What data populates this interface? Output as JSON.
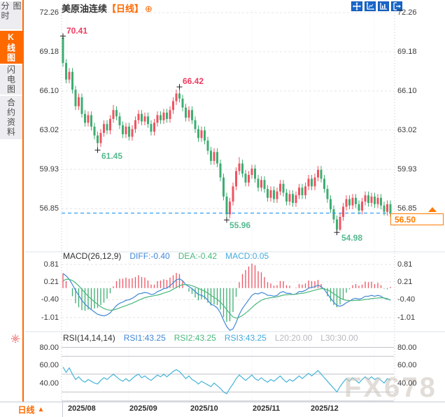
{
  "sidebar": {
    "tabs": [
      {
        "label": "分时图",
        "active": false
      },
      {
        "label": "K线图",
        "active": true
      },
      {
        "label": "闪电图",
        "active": false
      },
      {
        "label": "合约资料",
        "active": false
      }
    ]
  },
  "header": {
    "title": "美原油连续",
    "period_tag": "【日线】",
    "plus_icon": "⊕"
  },
  "toolbar": {
    "icons": [
      "crosshair-move-icon",
      "fit-chart-icon",
      "axis-scale-icon",
      "collapse-panel-icon"
    ]
  },
  "main_chart": {
    "y_labels": [
      "72.26",
      "69.18",
      "66.10",
      "63.02",
      "59.93",
      "56.85"
    ],
    "current_price": "56.50"
  },
  "macd": {
    "params": "MACD(26,12,9)",
    "diff": "DIFF:-0.40",
    "dea": "DEA:-0.42",
    "macd": "MACD:0.05",
    "y_labels": [
      "0.81",
      "0.21",
      "-0.40",
      "-1.01"
    ]
  },
  "rsi": {
    "params": "RSI(14,14,14)",
    "rsi1": "RSI1:43.25",
    "rsi2": "RSI2:43.25",
    "rsi3": "RSI3:43.25",
    "l20": "L20:20.00",
    "l30": "L30:30.00",
    "y_labels": [
      "80.00",
      "60.00",
      "40.00"
    ]
  },
  "x_axis": {
    "dates": [
      "2025/08",
      "2025/09",
      "2025/10",
      "2025/11",
      "2025/12"
    ]
  },
  "bottom_bar": {
    "period": "日线",
    "arrow": "▲"
  },
  "watermark": "FX678",
  "colors": {
    "accent_orange": "#ff6a00",
    "toolbar_blue": "#1a67c9",
    "up": "#ef5361",
    "down": "#3dae71",
    "marker_up_text": "#ef3a60",
    "marker_down_text": "#55b990",
    "current_line_blue": "#2196f3",
    "diff_line": "#4187d6",
    "dea_line": "#49b77c",
    "rsi_line": "#45b4d8",
    "grid": "#e4e4ea",
    "rsi_levels": "#c2c2ca",
    "axis_text": "#3a3a3a"
  },
  "chart_data": {
    "type": "candlestick",
    "title": "美原油连续【日线】",
    "x_months": [
      "2025/08",
      "2025/09",
      "2025/10",
      "2025/11",
      "2025/12"
    ],
    "y_ticks": [
      72.26,
      69.18,
      66.1,
      63.02,
      59.93,
      56.85
    ],
    "current_price": 56.5,
    "candles": [
      [
        70.3,
        70.41,
        68.0,
        68.3
      ],
      [
        68.3,
        68.6,
        66.7,
        67.0
      ],
      [
        67.0,
        67.9,
        66.7,
        67.6
      ],
      [
        67.6,
        67.9,
        65.9,
        66.2
      ],
      [
        66.2,
        66.5,
        64.6,
        64.9
      ],
      [
        64.9,
        65.9,
        64.6,
        65.6
      ],
      [
        65.6,
        65.9,
        64.0,
        64.3
      ],
      [
        64.3,
        64.6,
        63.3,
        63.6
      ],
      [
        63.6,
        64.5,
        63.3,
        64.2
      ],
      [
        64.2,
        64.5,
        63.0,
        63.3
      ],
      [
        63.3,
        63.6,
        62.3,
        62.6
      ],
      [
        62.6,
        62.9,
        61.45,
        62.0
      ],
      [
        62.0,
        63.1,
        61.7,
        62.8
      ],
      [
        62.8,
        63.8,
        62.5,
        63.5
      ],
      [
        63.5,
        63.8,
        62.7,
        63.0
      ],
      [
        63.0,
        64.2,
        62.7,
        63.9
      ],
      [
        63.9,
        65.0,
        63.6,
        64.6
      ],
      [
        64.6,
        64.9,
        63.8,
        64.1
      ],
      [
        64.1,
        64.4,
        63.1,
        63.4
      ],
      [
        63.4,
        63.7,
        62.4,
        62.7
      ],
      [
        62.7,
        63.6,
        62.4,
        63.3
      ],
      [
        63.3,
        63.6,
        62.2,
        62.5
      ],
      [
        62.5,
        63.4,
        62.2,
        63.1
      ],
      [
        63.1,
        64.1,
        62.8,
        63.8
      ],
      [
        63.8,
        64.6,
        63.5,
        64.3
      ],
      [
        64.3,
        64.6,
        63.4,
        63.7
      ],
      [
        63.7,
        64.4,
        63.4,
        64.1
      ],
      [
        64.1,
        64.4,
        63.2,
        63.5
      ],
      [
        63.5,
        63.8,
        62.6,
        62.9
      ],
      [
        62.9,
        63.9,
        62.6,
        63.6
      ],
      [
        63.6,
        64.5,
        63.3,
        64.2
      ],
      [
        64.2,
        64.5,
        63.5,
        63.8
      ],
      [
        63.8,
        64.7,
        63.5,
        64.4
      ],
      [
        64.4,
        64.7,
        63.6,
        63.9
      ],
      [
        63.9,
        64.9,
        63.6,
        64.6
      ],
      [
        64.6,
        65.6,
        64.3,
        65.3
      ],
      [
        65.3,
        66.2,
        65.0,
        65.9
      ],
      [
        65.9,
        66.42,
        65.2,
        65.5
      ],
      [
        65.5,
        65.8,
        64.5,
        64.8
      ],
      [
        64.8,
        65.1,
        63.7,
        64.0
      ],
      [
        64.0,
        64.9,
        63.7,
        64.6
      ],
      [
        64.6,
        64.9,
        63.5,
        63.8
      ],
      [
        63.8,
        64.1,
        62.8,
        63.1
      ],
      [
        63.1,
        63.4,
        62.1,
        62.4
      ],
      [
        62.4,
        63.3,
        62.1,
        63.0
      ],
      [
        63.0,
        63.3,
        61.9,
        62.2
      ],
      [
        62.2,
        62.5,
        61.1,
        61.4
      ],
      [
        61.4,
        61.7,
        60.3,
        60.6
      ],
      [
        60.6,
        61.6,
        60.3,
        61.3
      ],
      [
        61.3,
        61.6,
        60.1,
        60.4
      ],
      [
        60.4,
        60.7,
        59.0,
        59.3
      ],
      [
        59.3,
        59.6,
        57.5,
        57.8
      ],
      [
        57.8,
        58.1,
        55.96,
        56.4
      ],
      [
        56.4,
        57.7,
        56.1,
        57.4
      ],
      [
        57.4,
        58.9,
        57.1,
        58.6
      ],
      [
        58.6,
        60.1,
        58.3,
        59.8
      ],
      [
        59.8,
        60.9,
        59.5,
        60.4
      ],
      [
        60.4,
        60.7,
        59.3,
        59.6
      ],
      [
        59.6,
        59.9,
        58.6,
        58.9
      ],
      [
        58.9,
        59.8,
        58.6,
        59.5
      ],
      [
        59.5,
        60.3,
        59.2,
        60.0
      ],
      [
        60.0,
        60.3,
        58.9,
        59.2
      ],
      [
        59.2,
        59.5,
        58.2,
        58.5
      ],
      [
        58.5,
        59.4,
        58.2,
        59.1
      ],
      [
        59.1,
        59.4,
        58.1,
        58.4
      ],
      [
        58.4,
        58.7,
        57.4,
        57.7
      ],
      [
        57.7,
        58.6,
        57.4,
        58.3
      ],
      [
        58.3,
        58.6,
        57.3,
        57.6
      ],
      [
        57.6,
        58.5,
        57.3,
        58.2
      ],
      [
        58.2,
        59.1,
        57.9,
        58.8
      ],
      [
        58.8,
        59.1,
        57.8,
        58.1
      ],
      [
        58.1,
        58.4,
        57.1,
        57.4
      ],
      [
        57.4,
        58.3,
        57.1,
        58.0
      ],
      [
        58.0,
        58.3,
        57.0,
        57.3
      ],
      [
        57.3,
        58.2,
        57.0,
        57.9
      ],
      [
        57.9,
        58.8,
        57.6,
        58.5
      ],
      [
        58.5,
        58.8,
        57.6,
        57.9
      ],
      [
        57.9,
        58.9,
        57.6,
        58.6
      ],
      [
        58.6,
        59.5,
        58.3,
        59.2
      ],
      [
        59.2,
        59.5,
        58.3,
        58.6
      ],
      [
        58.6,
        59.6,
        58.3,
        59.3
      ],
      [
        59.3,
        60.2,
        59.0,
        59.9
      ],
      [
        59.9,
        60.2,
        58.9,
        59.2
      ],
      [
        59.2,
        59.5,
        58.1,
        58.4
      ],
      [
        58.4,
        58.7,
        57.3,
        57.6
      ],
      [
        57.6,
        57.9,
        56.5,
        56.8
      ],
      [
        56.8,
        57.1,
        55.7,
        56.0
      ],
      [
        56.0,
        56.3,
        54.98,
        55.2
      ],
      [
        55.2,
        56.5,
        55.1,
        56.2
      ],
      [
        56.2,
        57.3,
        55.9,
        57.0
      ],
      [
        57.0,
        57.9,
        56.7,
        57.6
      ],
      [
        57.6,
        57.9,
        56.8,
        57.1
      ],
      [
        57.1,
        58.0,
        56.8,
        57.7
      ],
      [
        57.7,
        58.0,
        56.9,
        57.2
      ],
      [
        57.2,
        57.5,
        56.4,
        56.7
      ],
      [
        56.7,
        57.7,
        56.4,
        57.4
      ],
      [
        57.4,
        58.2,
        57.1,
        57.9
      ],
      [
        57.9,
        58.2,
        57.0,
        57.3
      ],
      [
        57.3,
        58.1,
        57.0,
        57.8
      ],
      [
        57.8,
        58.1,
        56.9,
        57.2
      ],
      [
        57.2,
        58.0,
        56.9,
        57.7
      ],
      [
        57.7,
        58.0,
        56.8,
        57.1
      ],
      [
        57.1,
        57.4,
        56.3,
        56.6
      ],
      [
        56.6,
        57.5,
        56.3,
        57.2
      ],
      [
        57.2,
        57.5,
        56.2,
        56.5
      ]
    ],
    "markers": [
      {
        "label": "70.41",
        "index": 0,
        "at": "high",
        "tone": "up"
      },
      {
        "label": "61.45",
        "index": 11,
        "at": "low",
        "tone": "down"
      },
      {
        "label": "66.42",
        "index": 37,
        "at": "high",
        "tone": "up"
      },
      {
        "label": "55.96",
        "index": 52,
        "at": "low",
        "tone": "down"
      },
      {
        "label": "54.98",
        "index": 87,
        "at": "low",
        "tone": "down"
      }
    ],
    "macd": {
      "y_ticks": [
        0.81,
        0.21,
        -0.4,
        -1.01
      ],
      "bar_rule": "bar = 2*(diff-dea)",
      "diff": [
        0.5,
        0.42,
        0.3,
        0.12,
        -0.08,
        -0.25,
        -0.42,
        -0.55,
        -0.65,
        -0.74,
        -0.82,
        -0.9,
        -0.93,
        -0.95,
        -0.92,
        -0.85,
        -0.72,
        -0.6,
        -0.52,
        -0.48,
        -0.42,
        -0.4,
        -0.35,
        -0.28,
        -0.2,
        -0.18,
        -0.15,
        -0.17,
        -0.22,
        -0.2,
        -0.12,
        -0.08,
        -0.02,
        0.0,
        0.08,
        0.18,
        0.28,
        0.32,
        0.25,
        0.12,
        0.05,
        -0.02,
        -0.12,
        -0.22,
        -0.25,
        -0.3,
        -0.42,
        -0.55,
        -0.6,
        -0.68,
        -0.85,
        -1.1,
        -1.32,
        -1.45,
        -1.4,
        -1.18,
        -0.9,
        -0.7,
        -0.55,
        -0.4,
        -0.25,
        -0.18,
        -0.2,
        -0.15,
        -0.18,
        -0.25,
        -0.25,
        -0.28,
        -0.25,
        -0.15,
        -0.12,
        -0.18,
        -0.18,
        -0.22,
        -0.2,
        -0.12,
        -0.12,
        -0.08,
        0.0,
        0.02,
        0.05,
        0.1,
        0.05,
        -0.05,
        -0.2,
        -0.35,
        -0.48,
        -0.6,
        -0.62,
        -0.58,
        -0.5,
        -0.45,
        -0.38,
        -0.35,
        -0.38,
        -0.35,
        -0.28,
        -0.28,
        -0.25,
        -0.28,
        -0.25,
        -0.28,
        -0.35,
        -0.38,
        -0.4
      ],
      "dea": [
        0.25,
        0.3,
        0.3,
        0.26,
        0.18,
        0.08,
        -0.04,
        -0.16,
        -0.28,
        -0.38,
        -0.47,
        -0.56,
        -0.64,
        -0.7,
        -0.74,
        -0.76,
        -0.75,
        -0.72,
        -0.68,
        -0.64,
        -0.6,
        -0.56,
        -0.52,
        -0.47,
        -0.42,
        -0.37,
        -0.33,
        -0.3,
        -0.28,
        -0.26,
        -0.24,
        -0.21,
        -0.17,
        -0.14,
        -0.1,
        -0.04,
        0.02,
        0.08,
        0.12,
        0.12,
        0.11,
        0.08,
        0.04,
        -0.01,
        -0.06,
        -0.11,
        -0.17,
        -0.25,
        -0.32,
        -0.39,
        -0.48,
        -0.6,
        -0.74,
        -0.88,
        -0.99,
        -1.03,
        -1.0,
        -0.94,
        -0.86,
        -0.77,
        -0.67,
        -0.57,
        -0.49,
        -0.42,
        -0.37,
        -0.35,
        -0.33,
        -0.32,
        -0.3,
        -0.27,
        -0.24,
        -0.23,
        -0.22,
        -0.22,
        -0.21,
        -0.19,
        -0.18,
        -0.16,
        -0.13,
        -0.1,
        -0.07,
        -0.04,
        -0.02,
        -0.03,
        -0.06,
        -0.12,
        -0.19,
        -0.27,
        -0.34,
        -0.39,
        -0.42,
        -0.43,
        -0.43,
        -0.42,
        -0.42,
        -0.41,
        -0.39,
        -0.38,
        -0.36,
        -0.35,
        -0.34,
        -0.33,
        -0.34,
        -0.36,
        -0.42
      ]
    },
    "rsi": {
      "y_ticks": [
        80,
        60,
        40
      ],
      "levels": [
        80,
        70,
        50,
        30,
        20
      ],
      "values": [
        58,
        52,
        57,
        50,
        44,
        47,
        43,
        41,
        44,
        42,
        40,
        39,
        43,
        46,
        44,
        47,
        50,
        47,
        44,
        42,
        45,
        42,
        45,
        48,
        50,
        46,
        48,
        45,
        43,
        46,
        49,
        47,
        50,
        47,
        50,
        53,
        55,
        53,
        49,
        45,
        48,
        44,
        42,
        39,
        42,
        40,
        38,
        36,
        40,
        37,
        34,
        30,
        28,
        34,
        39,
        45,
        49,
        46,
        43,
        46,
        49,
        45,
        43,
        46,
        43,
        41,
        44,
        42,
        45,
        48,
        44,
        41,
        44,
        42,
        45,
        48,
        45,
        48,
        51,
        48,
        51,
        54,
        50,
        46,
        42,
        38,
        34,
        30,
        36,
        41,
        45,
        42,
        46,
        43,
        40,
        44,
        47,
        44,
        47,
        44,
        46,
        43,
        40,
        45,
        43.25
      ]
    }
  }
}
